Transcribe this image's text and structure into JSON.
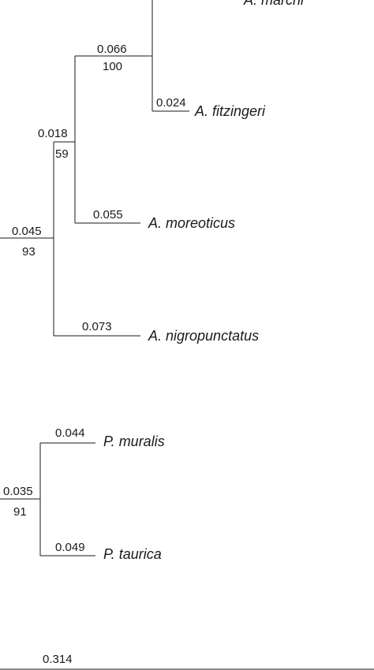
{
  "taxa": {
    "marchi": "A. marchi",
    "fitzingeri": "A. fitzingeri",
    "moreoticus": "A. moreoticus",
    "nigropunctatus": "A. nigropunctatus",
    "muralis": "P. muralis",
    "taurica": "P. taurica"
  },
  "branch_lengths": {
    "fitzingeri": "0.024",
    "marchi_fitzingeri_clade": "0.066",
    "moreoticus": "0.055",
    "moreo_clade": "0.018",
    "nigropunctatus": "0.073",
    "algyroides_clade": "0.045",
    "muralis": "0.044",
    "taurica": "0.049",
    "podarcis_clade": "0.035",
    "bottom": "0.314"
  },
  "bootstrap": {
    "marchi_fitzingeri_clade": "100",
    "moreo_clade": "59",
    "algyroides_clade": "93",
    "podarcis_clade": "91"
  }
}
